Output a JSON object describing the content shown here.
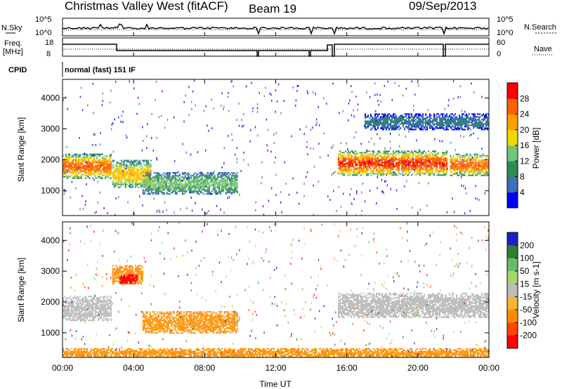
{
  "header": {
    "site": "Christmas Valley West (fitACF)",
    "beam": "Beam 19",
    "date": "09/Sep/2013",
    "cpid_label": "CPID",
    "cpid_value": "normal (fast) 151 IF"
  },
  "status_panels": {
    "noise": {
      "left_label": "N.Sky",
      "right_label": "N.Search",
      "left_ticks": [
        "10^5",
        "10^0"
      ],
      "right_ticks": [
        "10^5",
        "10^0"
      ]
    },
    "freq": {
      "left_label_1": "Freq.",
      "left_label_2": "[MHz]",
      "right_label": "Nave",
      "left_ticks": [
        "18",
        "8"
      ],
      "right_ticks": [
        "60",
        "0"
      ]
    }
  },
  "time_axis": {
    "title": "Time UT",
    "ticks": [
      "00:00",
      "04:00",
      "08:00",
      "12:00",
      "16:00",
      "20:00",
      "00:00"
    ]
  },
  "colors": {
    "power_scale": [
      "#0000ff",
      "#3c6fb4",
      "#2e8b57",
      "#74c476",
      "#f2d700",
      "#ff9f00",
      "#ff6000",
      "#ff0000"
    ],
    "velocity_scale": [
      "#2020c0",
      "#2e7d32",
      "#66bb6a",
      "#a5d66f",
      "#bdbdbd",
      "#f7b733",
      "#ff8c00",
      "#ff4500",
      "#ff0000"
    ]
  },
  "chart_data": [
    {
      "type": "heatmap",
      "panel": "power",
      "ylabel": "Slant Range [km]",
      "yticks": [
        "1000",
        "2000",
        "3000",
        "4000"
      ],
      "ylim": [
        200,
        4600
      ],
      "xlim_hours": [
        0,
        24
      ],
      "colorbar": {
        "label": "Power [dB]",
        "ticks": [
          "4",
          "8",
          "12",
          "16",
          "20",
          "24",
          "28"
        ],
        "range": [
          0,
          32
        ]
      },
      "features": [
        {
          "t": [
            0.0,
            2.7
          ],
          "range_km": [
            1400,
            2200
          ],
          "peak_db": 26
        },
        {
          "t": [
            2.8,
            5.0
          ],
          "range_km": [
            1100,
            2000
          ],
          "peak_db": 20
        },
        {
          "t": [
            4.5,
            9.8
          ],
          "range_km": [
            900,
            1600
          ],
          "peak_db": 14
        },
        {
          "t": [
            15.5,
            21.6
          ],
          "range_km": [
            1500,
            2300
          ],
          "peak_db": 28
        },
        {
          "t": [
            21.8,
            24.0
          ],
          "range_km": [
            1500,
            2200
          ],
          "peak_db": 26
        },
        {
          "t": [
            17.0,
            24.0
          ],
          "range_km": [
            3000,
            3500
          ],
          "peak_db": 8
        }
      ]
    },
    {
      "type": "heatmap",
      "panel": "velocity",
      "ylabel": "Slant Range [km]",
      "yticks": [
        "1000",
        "2000",
        "3000",
        "4000"
      ],
      "ylim": [
        200,
        4600
      ],
      "xlim_hours": [
        0,
        24
      ],
      "colorbar": {
        "label": "Velocity [m s-1]",
        "ticks": [
          "200",
          "100",
          "50",
          "15",
          "-15",
          "-50",
          "-100",
          "-200"
        ],
        "range": [
          -250,
          250
        ]
      },
      "features": [
        {
          "t": [
            0.0,
            2.7
          ],
          "range_km": [
            1400,
            2200
          ],
          "velocity": 0
        },
        {
          "t": [
            2.8,
            4.5
          ],
          "range_km": [
            2600,
            3200
          ],
          "velocity": -80
        },
        {
          "t": [
            3.2,
            4.2
          ],
          "range_km": [
            2600,
            2900
          ],
          "velocity": -220
        },
        {
          "t": [
            4.5,
            9.8
          ],
          "range_km": [
            1000,
            1700
          ],
          "velocity": -60
        },
        {
          "t": [
            15.5,
            24.0
          ],
          "range_km": [
            1500,
            2300
          ],
          "velocity": 0
        },
        {
          "t": [
            0.0,
            24.0
          ],
          "range_km": [
            200,
            500
          ],
          "velocity": -60
        }
      ]
    }
  ]
}
